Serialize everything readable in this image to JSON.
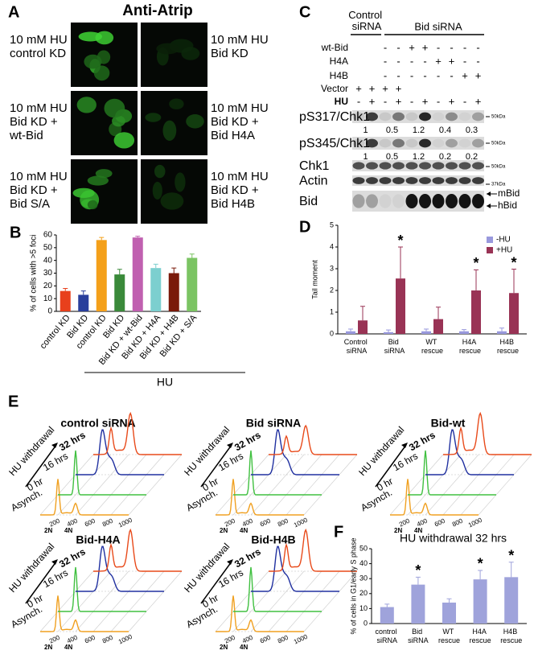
{
  "panel_a": {
    "letter": "A",
    "title": "Anti-Atrip",
    "images": [
      {
        "label": [
          "10 mM HU",
          "control KD"
        ]
      },
      {
        "label": [
          "10 mM HU",
          "Bid KD"
        ]
      },
      {
        "label": [
          "10 mM HU",
          "Bid KD +",
          "wt-Bid"
        ]
      },
      {
        "label": [
          "10 mM HU",
          "Bid KD +",
          "Bid H4A"
        ]
      },
      {
        "label": [
          "10 mM HU",
          "Bid KD +",
          "Bid S/A"
        ]
      },
      {
        "label": [
          "10 mM HU",
          "Bid KD +",
          "Bid H4B"
        ]
      }
    ]
  },
  "panel_c": {
    "letter": "C",
    "groups": [
      "Control siRNA",
      "Bid siRNA"
    ],
    "conditions": [
      {
        "label": "wt-Bid",
        "marks": [
          "-",
          "-",
          "+",
          "+",
          "-",
          "-",
          "-",
          "-"
        ]
      },
      {
        "label": "H4A",
        "marks": [
          "-",
          "-",
          "-",
          "-",
          "+",
          "+",
          "-",
          "-"
        ]
      },
      {
        "label": "H4B",
        "marks": [
          "-",
          "-",
          "-",
          "-",
          "-",
          "-",
          "+",
          "+"
        ]
      },
      {
        "label": "Vector",
        "marks": [
          "+",
          "+",
          "+",
          "+"
        ]
      },
      {
        "label": "HU",
        "marks": [
          "-",
          "+",
          "-",
          "+",
          "-",
          "+",
          "-",
          "+",
          "-",
          "+"
        ]
      }
    ],
    "blots": [
      {
        "label": "pS317/Chk1",
        "quant": [
          1,
          0.5,
          1.2,
          0.4,
          0.3
        ],
        "marker": "50kDa"
      },
      {
        "label": "pS345/Chk1",
        "quant": [
          1,
          0.5,
          1.2,
          0.2,
          0.2
        ],
        "marker": "50kDa"
      },
      {
        "label": "Chk1",
        "marker": "50kDa"
      },
      {
        "label": "Actin",
        "marker": "37kDa"
      },
      {
        "label": "Bid"
      }
    ],
    "bid_forms": [
      "mBid",
      "hBid"
    ]
  },
  "panel_e": {
    "letter": "E",
    "axis_label": "HU withdrawal",
    "timepoints": [
      "32 hrs",
      "16 hrs",
      "0 hr",
      "Asynch."
    ],
    "xticks": [
      200,
      400,
      600,
      800,
      1000
    ],
    "ploidy": [
      "2N",
      "4N"
    ],
    "plots": [
      "control siRNA",
      "Bid siRNA",
      "Bid-wt",
      "Bid-H4A",
      "Bid-H4B"
    ]
  },
  "chart_data": [
    {
      "type": "bar",
      "panel": "B",
      "ylabel": "% of cells with >5 foci",
      "ylim": [
        0,
        60
      ],
      "yticks": [
        0,
        10,
        20,
        30,
        40,
        50,
        60
      ],
      "categories": [
        "control KD",
        "Bid KD",
        "control KD",
        "Bid KD",
        "Bid KD + wt-Bid",
        "Bid KD + H4A",
        "Bid KD + H4B",
        "Bid KD + S/A"
      ],
      "values": [
        16,
        13,
        56,
        29,
        58,
        34,
        30,
        42
      ],
      "errors": [
        2,
        3,
        2,
        4,
        1,
        3,
        4,
        3
      ],
      "colors": [
        "#e8401c",
        "#2a3f9c",
        "#f4a01a",
        "#3a8a3a",
        "#c060b0",
        "#7ccfcf",
        "#7a1a0a",
        "#7bc463"
      ],
      "group_label": "HU"
    },
    {
      "type": "bar",
      "panel": "D",
      "ylabel": "Tail moment",
      "ylim": [
        0,
        5
      ],
      "yticks": [
        0,
        1,
        2,
        3,
        4,
        5
      ],
      "categories": [
        "Control siRNA",
        "Bid siRNA",
        "WT rescue",
        "H4A rescue",
        "H4B rescue"
      ],
      "series": [
        {
          "name": "-HU",
          "color": "#9999dd",
          "values": [
            0.12,
            0.08,
            0.12,
            0.12,
            0.12
          ],
          "errors": [
            0.1,
            0.1,
            0.1,
            0.08,
            0.15
          ]
        },
        {
          "name": "+HU",
          "color": "#993355",
          "values": [
            0.62,
            2.55,
            0.68,
            2.0,
            1.88
          ],
          "errors": [
            0.65,
            1.45,
            0.55,
            0.95,
            1.1
          ]
        }
      ],
      "legend": "upper right",
      "significant": [
        false,
        true,
        false,
        true,
        true
      ],
      "significance_label": "*"
    },
    {
      "type": "bar",
      "panel": "F",
      "title": "HU withdrawal 32 hrs",
      "ylabel": "% of cells in G1/early S phase",
      "ylim": [
        0,
        50
      ],
      "yticks": [
        0,
        10,
        20,
        30,
        40,
        50
      ],
      "categories": [
        "control siRNA",
        "Bid siRNA",
        "WT rescue",
        "H4A rescue",
        "H4B rescue"
      ],
      "values": [
        11,
        26,
        14,
        29.5,
        31
      ],
      "errors": [
        2,
        5,
        2.5,
        6,
        10
      ],
      "color": "#9fa3db",
      "significant": [
        false,
        true,
        false,
        true,
        true
      ],
      "significance_label": "*"
    }
  ]
}
